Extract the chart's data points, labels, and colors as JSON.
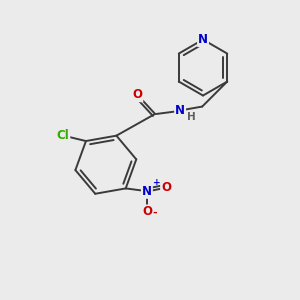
{
  "background_color": "#ebebeb",
  "bond_color": "#3a3a3a",
  "atom_colors": {
    "N": "#0000cc",
    "O": "#cc0000",
    "Cl": "#33aa00",
    "H": "#606060"
  },
  "figsize": [
    3.0,
    3.0
  ],
  "dpi": 100,
  "bond_lw": 1.4,
  "font_size": 8.5
}
